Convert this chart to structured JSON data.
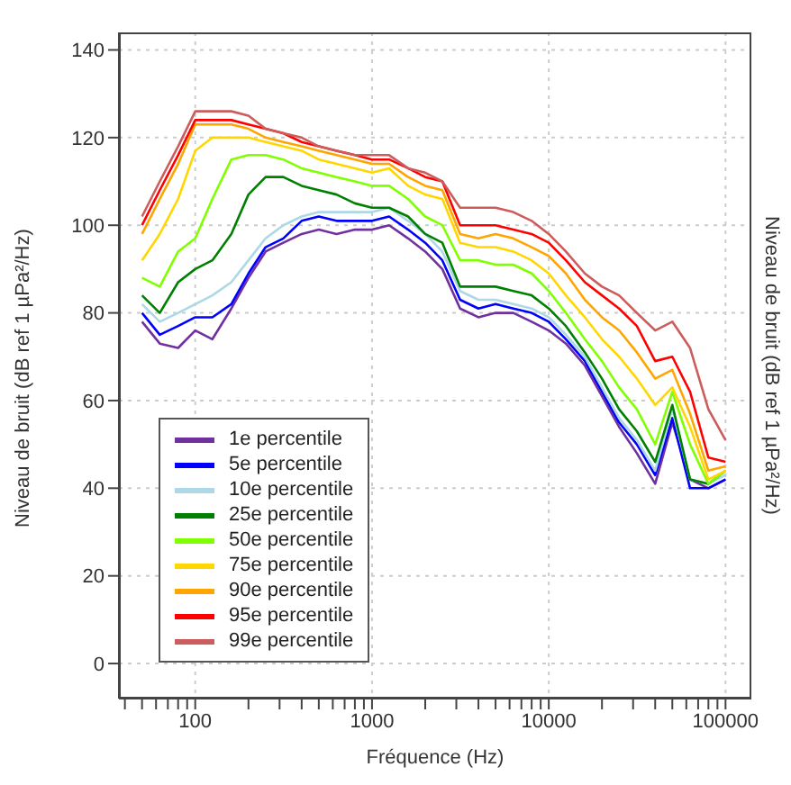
{
  "chart_data": {
    "type": "line",
    "xlabel": "Fréquence (Hz)",
    "ylabel": "Niveau de bruit (dB ref 1 µPa²/Hz)",
    "y2label": "Niveau de bruit (dB ref 1 µPa²/Hz)",
    "log": "x",
    "grid": true,
    "legend": "bottom left",
    "line_style": "solid",
    "marker": "none",
    "xlim": [
      37,
      140000
    ],
    "ylim": [
      -8,
      144
    ],
    "xticks": [
      {
        "value": 40,
        "label": null
      },
      {
        "value": 50,
        "label": null
      },
      {
        "value": 60,
        "label": null
      },
      {
        "value": 70,
        "label": null
      },
      {
        "value": 80,
        "label": null
      },
      {
        "value": 90,
        "label": null
      },
      100,
      {
        "value": 200,
        "label": null
      },
      {
        "value": 300,
        "label": null
      },
      {
        "value": 400,
        "label": null
      },
      {
        "value": 500,
        "label": null
      },
      {
        "value": 600,
        "label": null
      },
      {
        "value": 700,
        "label": null
      },
      {
        "value": 800,
        "label": null
      },
      {
        "value": 900,
        "label": null
      },
      1000,
      {
        "value": 2000,
        "label": null
      },
      {
        "value": 3000,
        "label": null
      },
      {
        "value": 4000,
        "label": null
      },
      {
        "value": 5000,
        "label": null
      },
      {
        "value": 6000,
        "label": null
      },
      {
        "value": 7000,
        "label": null
      },
      {
        "value": 8000,
        "label": null
      },
      {
        "value": 9000,
        "label": null
      },
      10000,
      {
        "value": 20000,
        "label": null
      },
      {
        "value": 30000,
        "label": null
      },
      {
        "value": 40000,
        "label": null
      },
      {
        "value": 50000,
        "label": null
      },
      {
        "value": 60000,
        "label": null
      },
      {
        "value": 70000,
        "label": null
      },
      {
        "value": 80000,
        "label": null
      },
      {
        "value": 90000,
        "label": null
      },
      100000
    ],
    "yticks": [
      0,
      20,
      40,
      60,
      80,
      100,
      120,
      140
    ],
    "x": [
      50,
      63,
      80,
      100,
      125,
      160,
      200,
      250,
      315,
      400,
      500,
      630,
      800,
      1000,
      1250,
      1600,
      2000,
      2500,
      3150,
      4000,
      5000,
      6300,
      8000,
      10000,
      12500,
      16000,
      20000,
      25000,
      31500,
      40000,
      50000,
      63000,
      80000,
      100000
    ],
    "series": [
      {
        "name": "1e percentile",
        "color": "#7030a0",
        "values": [
          78,
          73,
          72,
          76,
          74,
          81,
          88,
          94,
          96,
          98,
          99,
          98,
          99,
          99,
          100,
          97,
          94,
          90,
          81,
          79,
          80,
          80,
          78,
          76,
          73,
          68,
          61,
          54,
          48,
          41,
          55,
          42,
          40,
          42
        ]
      },
      {
        "name": "5e percentile",
        "color": "#0000ff",
        "values": [
          80,
          75,
          77,
          79,
          79,
          82,
          89,
          95,
          97,
          101,
          102,
          101,
          101,
          101,
          102,
          99,
          96,
          92,
          83,
          81,
          82,
          81,
          80,
          78,
          74,
          69,
          62,
          55,
          50,
          43,
          56,
          40,
          40,
          42
        ]
      },
      {
        "name": "10e percentile",
        "color": "#add8e6",
        "values": [
          82,
          78,
          80,
          82,
          84,
          87,
          92,
          97,
          100,
          102,
          103,
          103,
          103,
          103,
          104,
          101,
          98,
          94,
          85,
          83,
          83,
          82,
          81,
          79,
          75,
          70,
          63,
          56,
          51,
          44,
          58,
          42,
          41,
          43
        ]
      },
      {
        "name": "25e percentile",
        "color": "#008000",
        "values": [
          84,
          80,
          87,
          90,
          92,
          98,
          107,
          111,
          111,
          109,
          108,
          107,
          105,
          104,
          104,
          102,
          98,
          96,
          86,
          86,
          86,
          85,
          84,
          81,
          77,
          71,
          65,
          58,
          53,
          46,
          59,
          42,
          41,
          44
        ]
      },
      {
        "name": "50e percentile",
        "color": "#80ff00",
        "values": [
          88,
          86,
          94,
          97,
          106,
          115,
          116,
          116,
          115,
          113,
          112,
          111,
          110,
          109,
          109,
          106,
          102,
          100,
          92,
          92,
          91,
          91,
          89,
          85,
          80,
          74,
          69,
          63,
          58,
          50,
          62,
          50,
          41,
          44
        ]
      },
      {
        "name": "75e percentile",
        "color": "#ffd700",
        "values": [
          92,
          98,
          106,
          117,
          120,
          120,
          120,
          119,
          118,
          117,
          115,
          114,
          113,
          112,
          113,
          109,
          107,
          106,
          96,
          95,
          95,
          94,
          92,
          89,
          84,
          79,
          74,
          70,
          65,
          59,
          63,
          54,
          42,
          44
        ]
      },
      {
        "name": "90e percentile",
        "color": "#ffa500",
        "values": [
          98,
          106,
          114,
          123,
          123,
          123,
          122,
          120,
          119,
          118,
          117,
          116,
          115,
          114,
          114,
          111,
          109,
          108,
          98,
          97,
          98,
          97,
          95,
          93,
          89,
          83,
          79,
          76,
          71,
          65,
          67,
          57,
          44,
          45
        ]
      },
      {
        "name": "95e percentile",
        "color": "#ff0000",
        "values": [
          100,
          108,
          116,
          124,
          124,
          124,
          123,
          122,
          121,
          119,
          118,
          117,
          116,
          115,
          115,
          113,
          111,
          110,
          100,
          100,
          100,
          99,
          98,
          96,
          92,
          87,
          84,
          81,
          77,
          69,
          70,
          62,
          47,
          46
        ]
      },
      {
        "name": "99e percentile",
        "color": "#cd5c5c",
        "values": [
          102,
          110,
          118,
          126,
          126,
          126,
          125,
          122,
          121,
          120,
          118,
          117,
          116,
          116,
          116,
          113,
          112,
          110,
          104,
          104,
          104,
          103,
          101,
          98,
          94,
          89,
          86,
          84,
          80,
          76,
          78,
          72,
          58,
          51
        ]
      }
    ]
  }
}
